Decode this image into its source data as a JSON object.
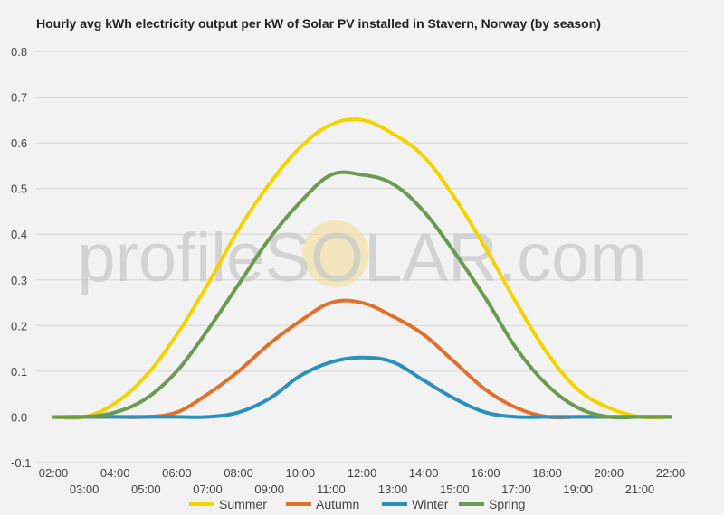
{
  "chart_data": {
    "type": "line",
    "title": "Hourly avg kWh electricity output per kW of Solar PV installed in Stavern, Norway (by season)",
    "x": [
      "02:00",
      "03:00",
      "04:00",
      "05:00",
      "06:00",
      "07:00",
      "08:00",
      "09:00",
      "10:00",
      "11:00",
      "12:00",
      "13:00",
      "14:00",
      "15:00",
      "16:00",
      "17:00",
      "18:00",
      "19:00",
      "20:00",
      "21:00",
      "22:00"
    ],
    "ylim": [
      -0.1,
      0.8
    ],
    "yticks": [
      "-0.1",
      "0.0",
      "0.1",
      "0.2",
      "0.3",
      "0.4",
      "0.5",
      "0.6",
      "0.7",
      "0.8"
    ],
    "xtick_labels_upper": [
      "02:00",
      "04:00",
      "06:00",
      "08:00",
      "10:00",
      "12:00",
      "14:00",
      "16:00",
      "18:00",
      "20:00",
      "22:00"
    ],
    "xtick_labels_lower": [
      "03:00",
      "05:00",
      "07:00",
      "09:00",
      "11:00",
      "13:00",
      "15:00",
      "17:00",
      "19:00",
      "21:00"
    ],
    "grid": true,
    "legend_position": "bottom",
    "series": [
      {
        "name": "Summer",
        "color": "#f5d300",
        "values": [
          0.0,
          0.0,
          0.03,
          0.09,
          0.18,
          0.29,
          0.41,
          0.51,
          0.59,
          0.64,
          0.65,
          0.62,
          0.57,
          0.48,
          0.37,
          0.25,
          0.14,
          0.06,
          0.02,
          0.0,
          0.0
        ]
      },
      {
        "name": "Autumn",
        "color": "#e0702a",
        "values": [
          0.0,
          0.0,
          0.0,
          0.0,
          0.01,
          0.05,
          0.1,
          0.16,
          0.21,
          0.25,
          0.25,
          0.22,
          0.18,
          0.12,
          0.06,
          0.02,
          0.0,
          0.0,
          0.0,
          0.0,
          0.0
        ]
      },
      {
        "name": "Winter",
        "color": "#2a90bf",
        "values": [
          0.0,
          0.0,
          0.0,
          0.0,
          0.0,
          0.0,
          0.01,
          0.04,
          0.09,
          0.12,
          0.13,
          0.12,
          0.08,
          0.04,
          0.01,
          0.0,
          0.0,
          0.0,
          0.0,
          0.0,
          0.0
        ]
      },
      {
        "name": "Spring",
        "color": "#6b9b50",
        "values": [
          0.0,
          0.0,
          0.01,
          0.04,
          0.1,
          0.19,
          0.29,
          0.39,
          0.47,
          0.53,
          0.53,
          0.51,
          0.45,
          0.36,
          0.26,
          0.15,
          0.07,
          0.02,
          0.0,
          0.0,
          0.0
        ]
      }
    ]
  },
  "watermark": {
    "brand": "profileSOLAR.com",
    "sun_color": "#f5d77a"
  }
}
